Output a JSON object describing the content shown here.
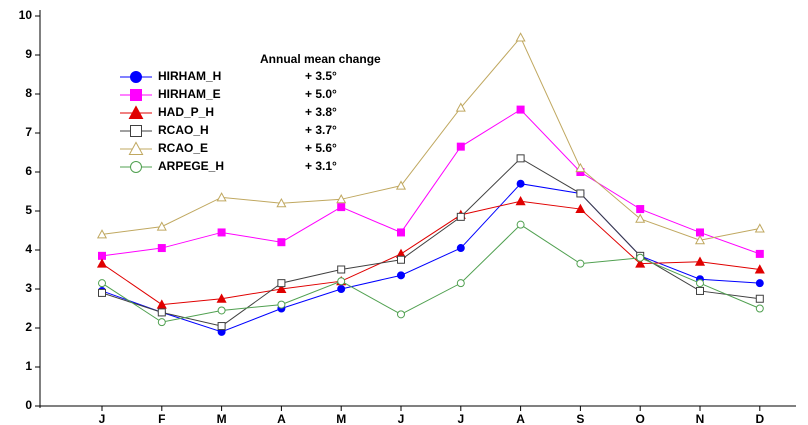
{
  "chart_data": {
    "type": "line",
    "legend_title": "Annual mean change",
    "categories": [
      "J",
      "F",
      "M",
      "A",
      "M",
      "J",
      "J",
      "A",
      "S",
      "O",
      "N",
      "D"
    ],
    "ylim": [
      0,
      10
    ],
    "yticks": [
      0,
      1,
      2,
      3,
      4,
      5,
      6,
      7,
      8,
      9,
      10
    ],
    "series": [
      {
        "name": "HIRHAM_H",
        "annual_change": "+ 3.5°",
        "color": "#0000ff",
        "marker": "circle",
        "filled": true,
        "values": [
          2.95,
          2.4,
          1.9,
          2.5,
          3.0,
          3.35,
          4.05,
          5.7,
          5.45,
          3.85,
          3.25,
          3.15
        ]
      },
      {
        "name": "HIRHAM_E",
        "annual_change": "+ 5.0°",
        "color": "#ff00ff",
        "marker": "square",
        "filled": true,
        "values": [
          3.85,
          4.05,
          4.45,
          4.2,
          5.1,
          4.45,
          6.65,
          7.6,
          6.0,
          5.05,
          4.45,
          3.9
        ]
      },
      {
        "name": "HAD_P_H",
        "annual_change": "+ 3.8°",
        "color": "#e00000",
        "marker": "triangle",
        "filled": true,
        "values": [
          3.65,
          2.6,
          2.75,
          3.0,
          3.2,
          3.9,
          4.9,
          5.25,
          5.05,
          3.65,
          3.7,
          3.5
        ]
      },
      {
        "name": "RCAO_H",
        "annual_change": "+ 3.7°",
        "color": "#404040",
        "marker": "square",
        "filled": false,
        "values": [
          2.9,
          2.4,
          2.05,
          3.15,
          3.5,
          3.75,
          4.85,
          6.35,
          5.45,
          3.85,
          2.95,
          2.75
        ]
      },
      {
        "name": "RCAO_E",
        "annual_change": "+ 5.6°",
        "color": "#c0a860",
        "marker": "triangle",
        "filled": false,
        "values": [
          4.4,
          4.6,
          5.35,
          5.2,
          5.3,
          5.65,
          7.65,
          9.45,
          6.1,
          4.8,
          4.25,
          4.55
        ]
      },
      {
        "name": "ARPEGE_H",
        "annual_change": "+ 3.1°",
        "color": "#50a050",
        "marker": "circle",
        "filled": false,
        "values": [
          3.15,
          2.15,
          2.45,
          2.6,
          3.2,
          2.35,
          3.15,
          4.65,
          3.65,
          3.8,
          3.15,
          2.5
        ]
      }
    ]
  }
}
